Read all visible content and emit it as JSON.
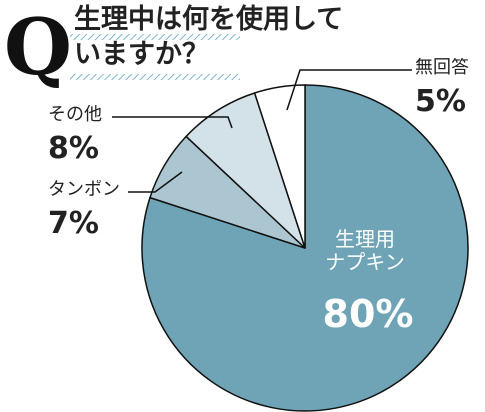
{
  "chart_data": {
    "type": "pie",
    "badge": "Q",
    "title": "生理中は何を使用して\nいますか？",
    "categories": [
      "生理用\nナプキン",
      "タンポン",
      "その他",
      "無回答"
    ],
    "values": [
      80,
      7,
      8,
      5
    ],
    "value_labels": [
      "80%",
      "7%",
      "8%",
      "5%"
    ],
    "colors": [
      "#6ea4b6",
      "#abc6d0",
      "#d3e2e8",
      "#ffffff"
    ]
  }
}
